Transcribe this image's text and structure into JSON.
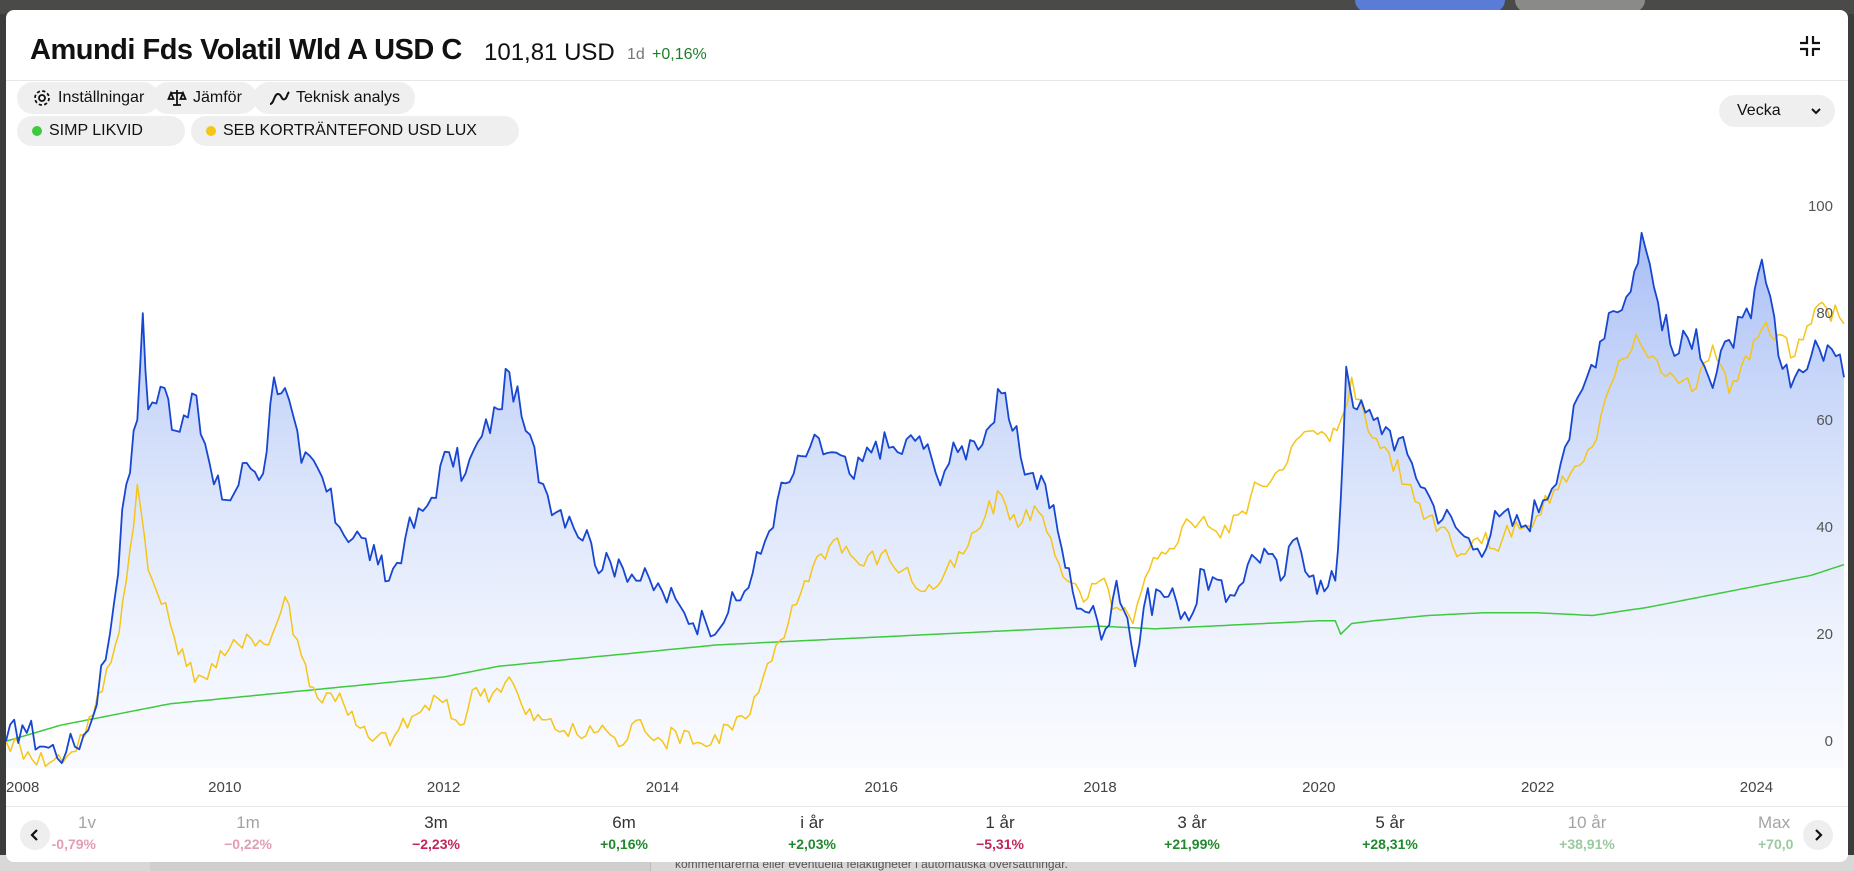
{
  "page": {
    "background_ghost_text": "kommentarerna eller eventuella felaktigheter i automatiska översättningar."
  },
  "fund": {
    "name": "Amundi Fds Volatil Wld A USD C",
    "price": "101,81 USD",
    "period": "1d",
    "change": "+0,16%"
  },
  "toolbar": {
    "settings_label": "Inställningar",
    "compare_label": "Jämför",
    "technical_label": "Teknisk analys",
    "interval_label": "Vecka"
  },
  "comparisons": [
    {
      "label": "SIMP LIKVID",
      "color": "#3ec93e"
    },
    {
      "label": "SEB KORTRÄNTEFOND USD LUX",
      "color": "#f5c518"
    }
  ],
  "chart_data": {
    "type": "line",
    "title": "Amundi Fds Volatil Wld A USD C",
    "xlabel": "",
    "ylabel": "",
    "x_ticks": [
      "2008",
      "2010",
      "2012",
      "2014",
      "2016",
      "2018",
      "2020",
      "2022",
      "2024"
    ],
    "y_ticks": [
      "0",
      "20",
      "40",
      "60",
      "80",
      "100"
    ],
    "xlim": [
      2008.0,
      2024.8
    ],
    "ylim": [
      -5,
      103
    ],
    "grid": false,
    "series": [
      {
        "name": "Amundi Fds Volatil Wld A USD C",
        "color": "#1746d1",
        "fill": true,
        "points": [
          [
            2008.0,
            0
          ],
          [
            2008.15,
            3
          ],
          [
            2008.35,
            -1
          ],
          [
            2008.55,
            -2
          ],
          [
            2008.75,
            2
          ],
          [
            2008.95,
            20
          ],
          [
            2009.1,
            48
          ],
          [
            2009.2,
            60
          ],
          [
            2009.25,
            80
          ],
          [
            2009.3,
            62
          ],
          [
            2009.45,
            66
          ],
          [
            2009.55,
            58
          ],
          [
            2009.7,
            65
          ],
          [
            2009.9,
            48
          ],
          [
            2010.05,
            45
          ],
          [
            2010.2,
            52
          ],
          [
            2010.35,
            50
          ],
          [
            2010.45,
            68
          ],
          [
            2010.55,
            66
          ],
          [
            2010.7,
            52
          ],
          [
            2010.85,
            51
          ],
          [
            2011.05,
            40
          ],
          [
            2011.25,
            38
          ],
          [
            2011.4,
            33
          ],
          [
            2011.5,
            30
          ],
          [
            2011.65,
            38
          ],
          [
            2011.85,
            44
          ],
          [
            2012.05,
            54
          ],
          [
            2012.2,
            50
          ],
          [
            2012.35,
            57
          ],
          [
            2012.5,
            62
          ],
          [
            2012.6,
            69
          ],
          [
            2012.75,
            58
          ],
          [
            2012.95,
            46
          ],
          [
            2013.15,
            42
          ],
          [
            2013.35,
            37
          ],
          [
            2013.45,
            32
          ],
          [
            2013.6,
            34
          ],
          [
            2013.8,
            30
          ],
          [
            2014.0,
            28
          ],
          [
            2014.2,
            24
          ],
          [
            2014.4,
            22
          ],
          [
            2014.6,
            24
          ],
          [
            2014.75,
            28
          ],
          [
            2014.9,
            35
          ],
          [
            2015.05,
            45
          ],
          [
            2015.2,
            50
          ],
          [
            2015.35,
            55
          ],
          [
            2015.55,
            54
          ],
          [
            2015.75,
            49
          ],
          [
            2015.95,
            56
          ],
          [
            2016.15,
            54
          ],
          [
            2016.35,
            57
          ],
          [
            2016.5,
            50
          ],
          [
            2016.7,
            54
          ],
          [
            2016.85,
            56
          ],
          [
            2017.0,
            59
          ],
          [
            2017.1,
            65
          ],
          [
            2017.2,
            58
          ],
          [
            2017.35,
            50
          ],
          [
            2017.5,
            48
          ],
          [
            2017.65,
            36
          ],
          [
            2017.75,
            28
          ],
          [
            2017.9,
            24
          ],
          [
            2018.05,
            21
          ],
          [
            2018.15,
            30
          ],
          [
            2018.25,
            23
          ],
          [
            2018.32,
            14
          ],
          [
            2018.4,
            25
          ],
          [
            2018.55,
            28
          ],
          [
            2018.7,
            26
          ],
          [
            2018.85,
            24
          ],
          [
            2018.95,
            32
          ],
          [
            2019.15,
            26
          ],
          [
            2019.35,
            33
          ],
          [
            2019.5,
            36
          ],
          [
            2019.65,
            30
          ],
          [
            2019.8,
            38
          ],
          [
            2019.95,
            31
          ],
          [
            2020.05,
            28
          ],
          [
            2020.15,
            30
          ],
          [
            2020.2,
            45
          ],
          [
            2020.25,
            70
          ],
          [
            2020.35,
            62
          ],
          [
            2020.5,
            60
          ],
          [
            2020.65,
            58
          ],
          [
            2020.85,
            52
          ],
          [
            2021.05,
            44
          ],
          [
            2021.25,
            40
          ],
          [
            2021.45,
            36
          ],
          [
            2021.65,
            42
          ],
          [
            2021.85,
            40
          ],
          [
            2022.05,
            45
          ],
          [
            2022.25,
            55
          ],
          [
            2022.45,
            68
          ],
          [
            2022.65,
            80
          ],
          [
            2022.85,
            84
          ],
          [
            2022.95,
            95
          ],
          [
            2023.1,
            82
          ],
          [
            2023.25,
            72
          ],
          [
            2023.45,
            77
          ],
          [
            2023.6,
            66
          ],
          [
            2023.75,
            75
          ],
          [
            2023.95,
            79
          ],
          [
            2024.05,
            90
          ],
          [
            2024.2,
            72
          ],
          [
            2024.35,
            68
          ],
          [
            2024.5,
            72
          ],
          [
            2024.65,
            74
          ],
          [
            2024.8,
            68
          ]
        ]
      },
      {
        "name": "SEB KORTRÄNTEFOND USD LUX",
        "color": "#f5c518",
        "fill": false,
        "points": [
          [
            2008.0,
            0
          ],
          [
            2008.2,
            -2
          ],
          [
            2008.4,
            -4
          ],
          [
            2008.6,
            -2
          ],
          [
            2008.8,
            5
          ],
          [
            2009.0,
            18
          ],
          [
            2009.1,
            30
          ],
          [
            2009.2,
            48
          ],
          [
            2009.3,
            32
          ],
          [
            2009.5,
            22
          ],
          [
            2009.65,
            14
          ],
          [
            2009.8,
            12
          ],
          [
            2010.0,
            16
          ],
          [
            2010.2,
            20
          ],
          [
            2010.4,
            18
          ],
          [
            2010.55,
            27
          ],
          [
            2010.7,
            16
          ],
          [
            2010.85,
            8
          ],
          [
            2011.05,
            9
          ],
          [
            2011.2,
            3
          ],
          [
            2011.35,
            0
          ],
          [
            2011.55,
            1
          ],
          [
            2011.75,
            5
          ],
          [
            2011.95,
            8
          ],
          [
            2012.15,
            3
          ],
          [
            2012.3,
            10
          ],
          [
            2012.45,
            9
          ],
          [
            2012.6,
            12
          ],
          [
            2012.75,
            5
          ],
          [
            2012.9,
            4
          ],
          [
            2013.1,
            2
          ],
          [
            2013.3,
            1
          ],
          [
            2013.45,
            3
          ],
          [
            2013.6,
            -1
          ],
          [
            2013.8,
            4
          ],
          [
            2014.0,
            0
          ],
          [
            2014.2,
            2
          ],
          [
            2014.4,
            -1
          ],
          [
            2014.6,
            3
          ],
          [
            2014.8,
            5
          ],
          [
            2015.0,
            15
          ],
          [
            2015.15,
            22
          ],
          [
            2015.3,
            30
          ],
          [
            2015.45,
            35
          ],
          [
            2015.6,
            38
          ],
          [
            2015.8,
            33
          ],
          [
            2016.0,
            35
          ],
          [
            2016.2,
            32
          ],
          [
            2016.4,
            28
          ],
          [
            2016.55,
            30
          ],
          [
            2016.75,
            35
          ],
          [
            2016.95,
            42
          ],
          [
            2017.1,
            46
          ],
          [
            2017.25,
            40
          ],
          [
            2017.4,
            44
          ],
          [
            2017.55,
            38
          ],
          [
            2017.7,
            30
          ],
          [
            2017.85,
            26
          ],
          [
            2018.0,
            30
          ],
          [
            2018.15,
            25
          ],
          [
            2018.3,
            22
          ],
          [
            2018.45,
            32
          ],
          [
            2018.6,
            35
          ],
          [
            2018.75,
            40
          ],
          [
            2018.95,
            42
          ],
          [
            2019.1,
            38
          ],
          [
            2019.3,
            43
          ],
          [
            2019.45,
            48
          ],
          [
            2019.6,
            50
          ],
          [
            2019.75,
            55
          ],
          [
            2019.95,
            58
          ],
          [
            2020.1,
            56
          ],
          [
            2020.2,
            60
          ],
          [
            2020.3,
            68
          ],
          [
            2020.45,
            58
          ],
          [
            2020.6,
            55
          ],
          [
            2020.8,
            48
          ],
          [
            2021.0,
            42
          ],
          [
            2021.15,
            40
          ],
          [
            2021.3,
            35
          ],
          [
            2021.45,
            38
          ],
          [
            2021.6,
            36
          ],
          [
            2021.8,
            41
          ],
          [
            2021.95,
            40
          ],
          [
            2022.15,
            47
          ],
          [
            2022.3,
            50
          ],
          [
            2022.5,
            55
          ],
          [
            2022.7,
            68
          ],
          [
            2022.9,
            76
          ],
          [
            2023.05,
            72
          ],
          [
            2023.25,
            68
          ],
          [
            2023.45,
            66
          ],
          [
            2023.6,
            74
          ],
          [
            2023.75,
            65
          ],
          [
            2023.9,
            72
          ],
          [
            2024.05,
            77
          ],
          [
            2024.2,
            76
          ],
          [
            2024.35,
            72
          ],
          [
            2024.5,
            78
          ],
          [
            2024.6,
            82
          ],
          [
            2024.8,
            78
          ]
        ]
      },
      {
        "name": "SIMP LIKVID",
        "color": "#3ec93e",
        "fill": false,
        "points": [
          [
            2008.0,
            0
          ],
          [
            2008.5,
            3
          ],
          [
            2009.0,
            5
          ],
          [
            2009.5,
            7
          ],
          [
            2010.0,
            8
          ],
          [
            2010.5,
            9
          ],
          [
            2011.0,
            10
          ],
          [
            2011.5,
            11
          ],
          [
            2012.0,
            12
          ],
          [
            2012.5,
            14
          ],
          [
            2013.0,
            15
          ],
          [
            2013.5,
            16
          ],
          [
            2014.0,
            17
          ],
          [
            2014.5,
            18
          ],
          [
            2015.0,
            18.5
          ],
          [
            2015.5,
            19
          ],
          [
            2016.0,
            19.5
          ],
          [
            2016.5,
            20
          ],
          [
            2017.0,
            20.5
          ],
          [
            2017.5,
            21
          ],
          [
            2018.0,
            21.5
          ],
          [
            2018.5,
            21
          ],
          [
            2019.0,
            21.5
          ],
          [
            2019.5,
            22
          ],
          [
            2020.0,
            22.5
          ],
          [
            2020.15,
            22.5
          ],
          [
            2020.2,
            20
          ],
          [
            2020.3,
            22
          ],
          [
            2020.5,
            22.5
          ],
          [
            2021.0,
            23.5
          ],
          [
            2021.5,
            24
          ],
          [
            2022.0,
            24
          ],
          [
            2022.5,
            23.5
          ],
          [
            2023.0,
            25
          ],
          [
            2023.5,
            27
          ],
          [
            2024.0,
            29
          ],
          [
            2024.5,
            31
          ],
          [
            2024.8,
            33
          ]
        ]
      }
    ]
  },
  "returns": [
    {
      "label": "1v",
      "value": "-0,79%",
      "sign": "neg",
      "faded": true
    },
    {
      "label": "1m",
      "value": "−0,22%",
      "sign": "neg",
      "faded": true
    },
    {
      "label": "3m",
      "value": "−2,23%",
      "sign": "neg",
      "faded": false
    },
    {
      "label": "6m",
      "value": "+0,16%",
      "sign": "pos",
      "faded": false
    },
    {
      "label": "i år",
      "value": "+2,03%",
      "sign": "pos",
      "faded": false
    },
    {
      "label": "1 år",
      "value": "−5,31%",
      "sign": "neg",
      "faded": false
    },
    {
      "label": "3 år",
      "value": "+21,99%",
      "sign": "pos",
      "faded": false
    },
    {
      "label": "5 år",
      "value": "+28,31%",
      "sign": "pos",
      "faded": false
    },
    {
      "label": "10 år",
      "value": "+38,91%",
      "sign": "pos",
      "faded": true
    },
    {
      "label": "Max",
      "value": "+70,0",
      "sign": "pos",
      "faded": true
    }
  ]
}
